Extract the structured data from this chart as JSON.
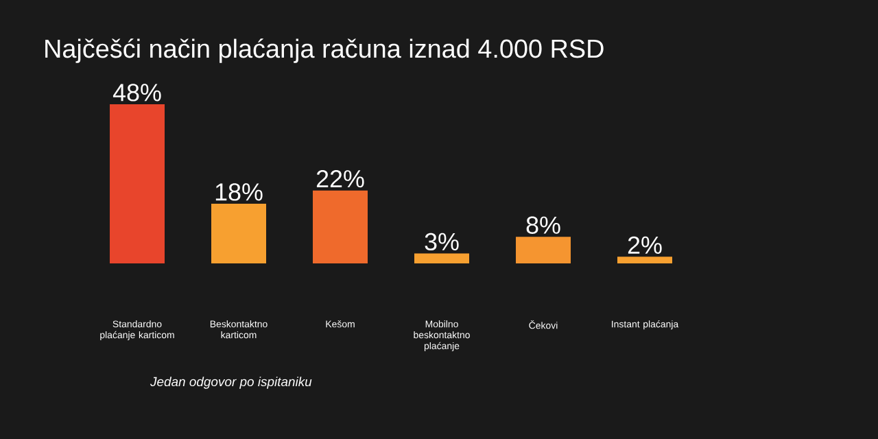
{
  "chart_data": {
    "type": "bar",
    "title": "Najčešći način plaćanja računa iznad 4.000 RSD",
    "categories": [
      "Standardno plaćanje karticom",
      "Beskontaktno karticom",
      "Kešom",
      "Mobilno beskontaktno plaćanje",
      "Čekovi",
      "Instant plaćanja"
    ],
    "values": [
      48,
      18,
      22,
      3,
      8,
      2
    ],
    "value_labels": [
      "48%",
      "18%",
      "22%",
      "3%",
      "8%",
      "2%"
    ],
    "colors": [
      "#e8452c",
      "#f7a030",
      "#ef6a2c",
      "#f7a030",
      "#f59530",
      "#f7a030"
    ],
    "annotations": [
      "*Jedan odgovor po ispitaniku*"
    ]
  }
}
